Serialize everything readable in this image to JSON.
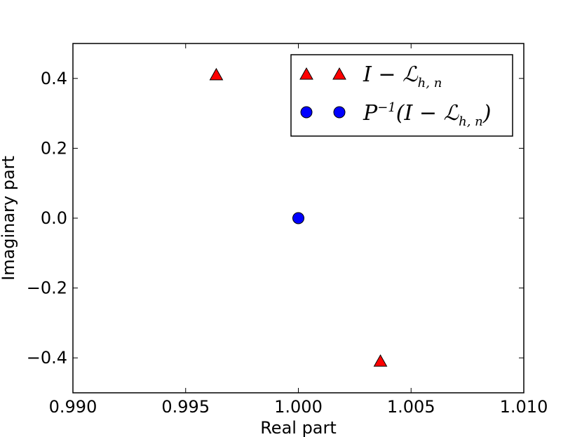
{
  "chart_data": {
    "type": "scatter",
    "title": "",
    "xlabel": "Real part",
    "ylabel": "Imaginary part",
    "xlim": [
      0.99,
      1.01
    ],
    "ylim": [
      -0.5,
      0.5
    ],
    "xticks": [
      0.99,
      0.995,
      1.0,
      1.005,
      1.01
    ],
    "yticks": [
      -0.4,
      -0.2,
      0.0,
      0.2,
      0.4
    ],
    "xtick_labels": [
      "0.990",
      "0.995",
      "1.000",
      "1.005",
      "1.010"
    ],
    "ytick_labels": [
      "−0.4",
      "−0.2",
      "0.0",
      "0.2",
      "0.4"
    ],
    "grid": false,
    "legend_position": "top-right",
    "series": [
      {
        "name": "I − ℒh,n",
        "marker": "triangle",
        "color": "#ff0000",
        "points": [
          {
            "x": 0.99636,
            "y": 0.41
          },
          {
            "x": 1.00364,
            "y": -0.41
          }
        ]
      },
      {
        "name": "P⁻¹(I − ℒh,n)",
        "marker": "circle",
        "color": "#0000ff",
        "points": [
          {
            "x": 1.0,
            "y": 0.0
          }
        ]
      }
    ]
  }
}
